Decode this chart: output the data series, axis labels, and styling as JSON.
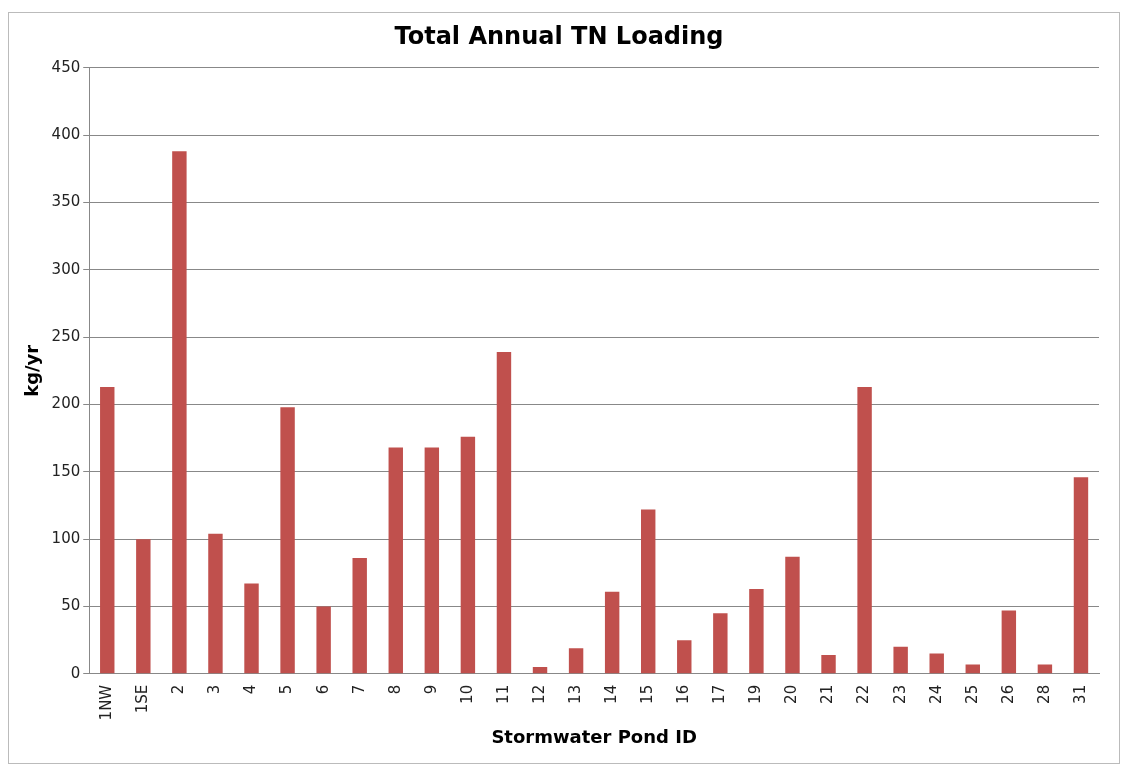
{
  "chart_data": {
    "type": "bar",
    "title": "Total Annual TN Loading",
    "xlabel": "Stormwater Pond ID",
    "ylabel": "kg/yr",
    "categories": [
      "1NW",
      "1SE",
      "2",
      "3",
      "4",
      "5",
      "6",
      "7",
      "8",
      "9",
      "10",
      "11",
      "12",
      "13",
      "14",
      "15",
      "16",
      "17",
      "19",
      "20",
      "21",
      "22",
      "23",
      "24",
      "25",
      "26",
      "28",
      "31"
    ],
    "values": [
      213,
      100,
      388,
      104,
      67,
      198,
      50,
      86,
      168,
      168,
      176,
      239,
      5,
      19,
      61,
      122,
      25,
      45,
      63,
      87,
      14,
      213,
      20,
      15,
      7,
      47,
      7,
      146
    ],
    "color": "#c0504d",
    "ylim": [
      0,
      450
    ],
    "yticks": [
      0,
      50,
      100,
      150,
      200,
      250,
      300,
      350,
      400,
      450
    ],
    "grid": "y",
    "legend": false
  }
}
